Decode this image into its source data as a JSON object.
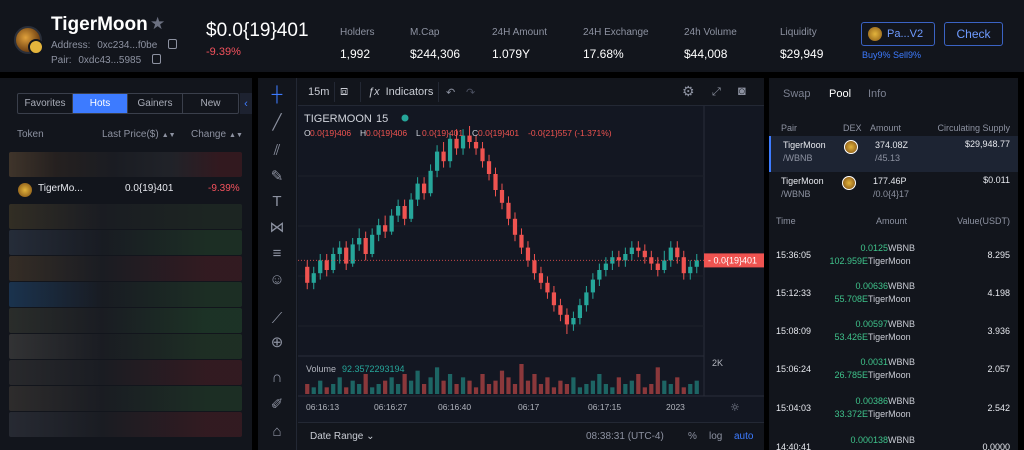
{
  "header": {
    "token_name": "TigerMoon",
    "address_label": "Address:",
    "address_value": "0xc234...f0be",
    "pair_label": "Pair:",
    "pair_value": "0xdc43...5985",
    "price": "$0.0{19}401",
    "change": "-9.39%",
    "stats": [
      {
        "label": "Holders",
        "value": "1,992"
      },
      {
        "label": "M.Cap",
        "value": "$244,306"
      },
      {
        "label": "24H Amount",
        "value": "1.079Y"
      },
      {
        "label": "24H Exchange",
        "value": "17.68%"
      },
      {
        "label": "24h Volume",
        "value": "$44,008"
      },
      {
        "label": "Liquidity",
        "value": "$29,949"
      }
    ],
    "pair_button": "Pa...V2",
    "check_button": "Check",
    "tax": "Buy9% Sell9%"
  },
  "left": {
    "tabs": [
      "Favorites",
      "Hots",
      "Gainers",
      "New"
    ],
    "active_tab": "Hots",
    "collapse_icon": "chevron-left-icon",
    "headers": {
      "token": "Token",
      "price": "Last Price($)",
      "change": "Change"
    },
    "selected_row": {
      "name": "TigerMo...",
      "price": "0.0{19}401",
      "change": "-9.39%"
    }
  },
  "chart_toolbar": {
    "interval": "15m",
    "indicators": "Indicators",
    "date_range": "Date Range",
    "clock": "08:38:31 (UTC-4)",
    "percent": "%",
    "log": "log",
    "auto": "auto"
  },
  "chart_data": {
    "type": "candlestick",
    "title": "TIGERMOON",
    "interval": "15",
    "ohlc_text": {
      "o": "0.0{19}406",
      "h": "0.0{19}406",
      "l": "0.0{19}401",
      "c": "0.0{19}401",
      "chg": "-0.0{21}557 (-1.371%)"
    },
    "last_price_label": "0.0{19}401",
    "volume_label": "Volume",
    "volume_value": "92.3572293194",
    "volume_axis_label": "2K",
    "x_ticks": [
      "06:16:13",
      "06:16:27",
      "06:16:40",
      "06:17",
      "06:17:15",
      "2023"
    ],
    "candles": [
      [
        60,
        55,
        62,
        53
      ],
      [
        55,
        58,
        60,
        53
      ],
      [
        58,
        62,
        64,
        56
      ],
      [
        62,
        59,
        64,
        57
      ],
      [
        59,
        64,
        66,
        58
      ],
      [
        64,
        66,
        68,
        61
      ],
      [
        66,
        61,
        68,
        59
      ],
      [
        61,
        67,
        69,
        60
      ],
      [
        67,
        69,
        72,
        65
      ],
      [
        69,
        64,
        71,
        62
      ],
      [
        64,
        70,
        72,
        63
      ],
      [
        70,
        73,
        75,
        68
      ],
      [
        73,
        71,
        76,
        69
      ],
      [
        71,
        76,
        78,
        70
      ],
      [
        76,
        79,
        81,
        74
      ],
      [
        79,
        75,
        81,
        73
      ],
      [
        75,
        81,
        83,
        74
      ],
      [
        81,
        86,
        88,
        79
      ],
      [
        86,
        83,
        88,
        81
      ],
      [
        83,
        90,
        92,
        82
      ],
      [
        90,
        96,
        98,
        88
      ],
      [
        96,
        93,
        99,
        91
      ],
      [
        93,
        100,
        102,
        91
      ],
      [
        100,
        97,
        103,
        95
      ],
      [
        97,
        101,
        103,
        95
      ],
      [
        101,
        99,
        104,
        97
      ],
      [
        99,
        97,
        101,
        95
      ],
      [
        97,
        93,
        99,
        91
      ],
      [
        93,
        89,
        95,
        87
      ],
      [
        89,
        84,
        91,
        82
      ],
      [
        84,
        80,
        86,
        78
      ],
      [
        80,
        75,
        82,
        73
      ],
      [
        75,
        70,
        77,
        68
      ],
      [
        70,
        66,
        72,
        64
      ],
      [
        66,
        62,
        68,
        60
      ],
      [
        62,
        58,
        64,
        56
      ],
      [
        58,
        55,
        60,
        53
      ],
      [
        55,
        52,
        57,
        50
      ],
      [
        52,
        48,
        54,
        46
      ],
      [
        48,
        45,
        50,
        43
      ],
      [
        45,
        42,
        47,
        39
      ],
      [
        42,
        44,
        46,
        40
      ],
      [
        44,
        48,
        50,
        42
      ],
      [
        48,
        52,
        54,
        46
      ],
      [
        52,
        56,
        58,
        50
      ],
      [
        56,
        59,
        61,
        54
      ],
      [
        59,
        61,
        63,
        57
      ],
      [
        61,
        63,
        65,
        59
      ],
      [
        63,
        62,
        65,
        60
      ],
      [
        62,
        64,
        66,
        60
      ],
      [
        64,
        66,
        68,
        62
      ],
      [
        66,
        65,
        68,
        63
      ],
      [
        65,
        63,
        67,
        61
      ],
      [
        63,
        61,
        65,
        59
      ],
      [
        61,
        59,
        63,
        57
      ],
      [
        59,
        62,
        65,
        58
      ],
      [
        62,
        66,
        68,
        60
      ],
      [
        66,
        63,
        68,
        61
      ],
      [
        63,
        58,
        65,
        56
      ],
      [
        58,
        60,
        62,
        56
      ],
      [
        60,
        62,
        64,
        58
      ]
    ],
    "volumes": [
      3,
      2,
      4,
      2,
      3,
      5,
      2,
      4,
      3,
      6,
      2,
      3,
      4,
      5,
      3,
      6,
      4,
      7,
      3,
      5,
      8,
      4,
      6,
      3,
      5,
      4,
      2,
      6,
      3,
      4,
      7,
      5,
      3,
      9,
      4,
      6,
      3,
      5,
      2,
      4,
      3,
      5,
      2,
      3,
      4,
      6,
      3,
      2,
      5,
      3,
      4,
      6,
      2,
      3,
      8,
      4,
      3,
      5,
      2,
      3,
      4
    ]
  },
  "right": {
    "tabs": [
      "Swap",
      "Pool",
      "Info"
    ],
    "active_tab": "Pool",
    "pool_headers": [
      "Pair",
      "DEX",
      "Amount",
      "Circulating Supply"
    ],
    "pools": [
      {
        "name": "TigerMoon",
        "base": "/WBNB",
        "amount": "374.08Z",
        "amount_sub": "/45.13",
        "supply": "$29,948.77",
        "active": true
      },
      {
        "name": "TigerMoon",
        "base": "/WBNB",
        "amount": "177.46P",
        "amount_sub": "/0.0{4}17",
        "supply": "$0.011",
        "active": false
      }
    ],
    "tx_headers": [
      "Time",
      "Amount",
      "Value(USDT)"
    ],
    "transactions": [
      {
        "time": "15:36:05",
        "a1": "0.0125",
        "t1": "WBNB",
        "a2": "102.959E",
        "t2": "TigerMoon",
        "value": "8.295"
      },
      {
        "time": "15:12:33",
        "a1": "0.00636",
        "t1": "WBNB",
        "a2": "55.708E",
        "t2": "TigerMoon",
        "value": "4.198"
      },
      {
        "time": "15:08:09",
        "a1": "0.00597",
        "t1": "WBNB",
        "a2": "53.426E",
        "t2": "TigerMoon",
        "value": "3.936"
      },
      {
        "time": "15:06:24",
        "a1": "0.0031",
        "t1": "WBNB",
        "a2": "26.785E",
        "t2": "TigerMoon",
        "value": "2.057"
      },
      {
        "time": "15:04:03",
        "a1": "0.00386",
        "t1": "WBNB",
        "a2": "33.372E",
        "t2": "TigerMoon",
        "value": "2.542"
      },
      {
        "time": "14:40:41",
        "a1": "0.000138",
        "t1": "WBNB",
        "a2": "",
        "t2": "",
        "value": "0.0000"
      }
    ]
  },
  "colors": {
    "up": "#26a69a",
    "down": "#ef5350",
    "accent": "#3d7bff",
    "negative": "#f4525d",
    "positive": "#3fc38b"
  }
}
